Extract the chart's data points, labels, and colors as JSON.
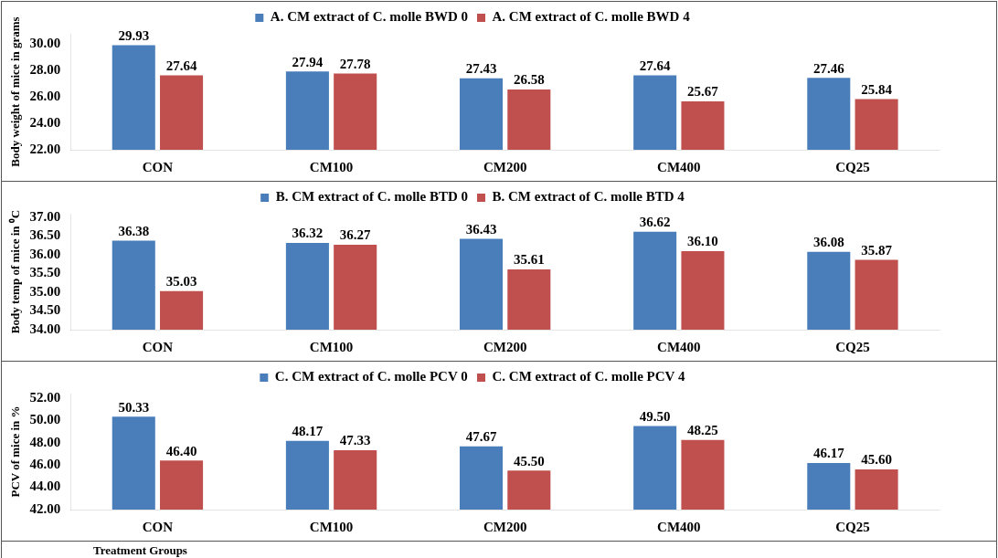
{
  "chart_data": [
    {
      "type": "bar",
      "categories": [
        "CON",
        "CM100",
        "CM200",
        "CM400",
        "CQ25"
      ],
      "ylabel": "Body weight of mice in grams",
      "legend": "top",
      "grid": false,
      "ylim": [
        22,
        30.8
      ],
      "yticks": [
        {
          "value": 22,
          "label": "22.00"
        },
        {
          "value": 24,
          "label": "24.00"
        },
        {
          "value": 26,
          "label": "26.00"
        },
        {
          "value": 28,
          "label": "28.00"
        },
        {
          "value": 30,
          "label": "30.00"
        }
      ],
      "series": [
        {
          "name": "A. CM extract of C. molle BWD 0",
          "color": "#4a7ebb",
          "values": [
            29.93,
            27.94,
            27.43,
            27.64,
            27.46
          ],
          "value_labels": [
            "29.93",
            "27.94",
            "27.43",
            "27.64",
            "27.46"
          ]
        },
        {
          "name": "A. CM extract of C. molle BWD 4",
          "color": "#c0504d",
          "values": [
            27.64,
            27.78,
            26.58,
            25.67,
            25.84
          ],
          "value_labels": [
            "27.64",
            "27.78",
            "26.58",
            "25.67",
            "25.84"
          ]
        }
      ]
    },
    {
      "type": "bar",
      "categories": [
        "CON",
        "CM100",
        "CM200",
        "CM400",
        "CQ25"
      ],
      "ylabel": "Body temp of mice in ⁰C",
      "legend": "top",
      "grid": false,
      "ylim": [
        34,
        37.1
      ],
      "yticks": [
        {
          "value": 34,
          "label": "34.00"
        },
        {
          "value": 34.5,
          "label": "34.50"
        },
        {
          "value": 35,
          "label": "35.00"
        },
        {
          "value": 35.5,
          "label": "35.50"
        },
        {
          "value": 36,
          "label": "36.00"
        },
        {
          "value": 36.5,
          "label": "36.50"
        },
        {
          "value": 37,
          "label": "37.00"
        }
      ],
      "series": [
        {
          "name": "B. CM extract of C. molle BTD 0",
          "color": "#4a7ebb",
          "values": [
            36.38,
            36.32,
            36.43,
            36.62,
            36.08
          ],
          "value_labels": [
            "36.38",
            "36.32",
            "36.43",
            "36.62",
            "36.08"
          ]
        },
        {
          "name": "B. CM extract of C. molle BTD 4",
          "color": "#c0504d",
          "values": [
            35.03,
            36.27,
            35.61,
            36.1,
            35.87
          ],
          "value_labels": [
            "35.03",
            "36.27",
            "35.61",
            "36.10",
            "35.87"
          ]
        }
      ]
    },
    {
      "type": "bar",
      "categories": [
        "CON",
        "CM100",
        "CM200",
        "CM400",
        "CQ25"
      ],
      "ylabel": "PCV of mice in %",
      "xlabel": "Treatment Groups",
      "legend": "top",
      "grid": false,
      "ylim": [
        42,
        52.4
      ],
      "yticks": [
        {
          "value": 42,
          "label": "42.00"
        },
        {
          "value": 44,
          "label": "44.00"
        },
        {
          "value": 46,
          "label": "46.00"
        },
        {
          "value": 48,
          "label": "48.00"
        },
        {
          "value": 50,
          "label": "50.00"
        },
        {
          "value": 52,
          "label": "52.00"
        }
      ],
      "series": [
        {
          "name": "C. CM extract of C. molle PCV 0",
          "color": "#4a7ebb",
          "values": [
            50.33,
            48.17,
            47.67,
            49.5,
            46.17
          ],
          "value_labels": [
            "50.33",
            "48.17",
            "47.67",
            "49.50",
            "46.17"
          ]
        },
        {
          "name": "C. CM extract of C. molle PCV 4",
          "color": "#c0504d",
          "values": [
            46.4,
            47.33,
            45.5,
            48.25,
            45.6
          ],
          "value_labels": [
            "46.40",
            "47.33",
            "45.50",
            "48.25",
            "45.60"
          ]
        }
      ]
    }
  ]
}
